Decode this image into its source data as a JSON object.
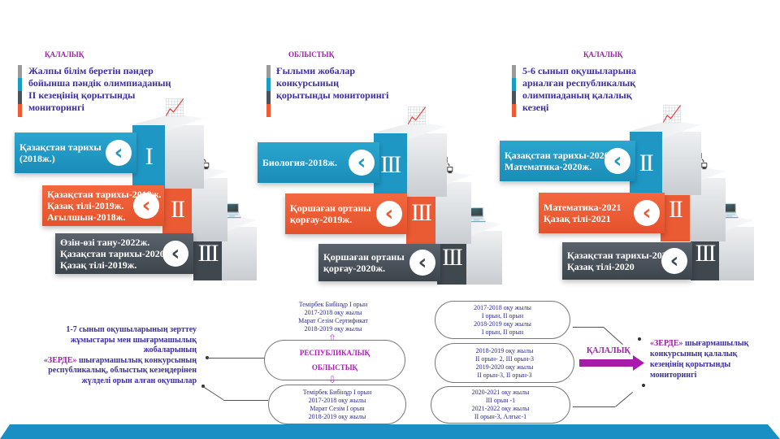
{
  "colors": {
    "blue": "#1a8cb8",
    "orange": "#e4522c",
    "dark": "#3c444c",
    "header": "#9b1fa8",
    "text": "#3a2ea0",
    "bar": "#1a8fc4"
  },
  "panels": [
    {
      "header": "ҚАЛАЛЫҚ",
      "title": [
        "Жалпы білім беретін пәндер",
        "бойынша пәндік олимпиаданың",
        "ІІ кезеңінің қорытынды",
        "мониторингі"
      ],
      "steps": [
        {
          "roman": "I",
          "lines": [
            "Қазақстан тарихы",
            "(2018ж.)"
          ]
        },
        {
          "roman": "II",
          "lines": [
            "Қазақстан тарихы-2019ж.",
            "Қазақ тілі-2019ж.",
            "Ағылшын-2018ж."
          ]
        },
        {
          "roman": "III",
          "lines": [
            "Өзін-өзі тану-2022ж.",
            "Қазақстан тарихы-2020ж.",
            "Қазақ тілі-2019ж."
          ]
        }
      ]
    },
    {
      "header": "ОБЛЫСТЫҚ",
      "title": [
        "Ғылыми жобалар",
        "конкурсының",
        "қорытынды мониторингі"
      ],
      "steps": [
        {
          "roman": "III",
          "lines": [
            "Биология-2018ж."
          ]
        },
        {
          "roman": "III",
          "lines": [
            "Қоршаған ортаны",
            "қорғау-2019ж."
          ]
        },
        {
          "roman": "III",
          "lines": [
            "Қоршаған ортаны",
            "қорғау-2020ж."
          ]
        }
      ]
    },
    {
      "header": "ҚАЛАЛЫҚ",
      "title": [
        "5-6 сынып оқушыларына",
        "арналған республикалық",
        "олимпиаданың қалалық",
        "кезеңі"
      ],
      "steps": [
        {
          "roman": "II",
          "lines": [
            "Қазақстан тарихы-2020ж.",
            "Математика-2020ж."
          ]
        },
        {
          "roman": "II",
          "lines": [
            "Математика-2021",
            "Қазақ тілі-2021"
          ]
        },
        {
          "roman": "III",
          "lines": [
            "Қазақстан тарихы-2021",
            "Қазақ тілі-2020"
          ]
        }
      ]
    }
  ],
  "zerde_left": {
    "lines": [
      "1-7 сынып оқушыларының зерттеу",
      "жұмыстары мен шығармашылық",
      "жобаларының"
    ],
    "highlight": "«ЗЕРДЕ»",
    "rest": [
      "шығармашылық конкурсының",
      "республикалық, облыстық кезеңдерінен",
      "жүлделі орын алған оқушылар"
    ]
  },
  "republic_top": [
    "Темірбек Бибінұр  І орын",
    "2017-2018 оқу жылы",
    "Марат Сезім  Сертификат",
    "2018-2019 оқу жылы"
  ],
  "levels": [
    "РЕСПУБЛИКАЛЫҚ",
    "ОБЛЫСТЫҚ"
  ],
  "oblys_bottom": [
    "Темірбек Бибінұр  І орын",
    "2017-2018 оқу жылы",
    "Марат Сезім І орын",
    "2018-2019 оқу жылы"
  ],
  "city_results": [
    [
      "2017-2018 оқу жылы",
      "І орын, ІІ орын",
      "2018-2019 оқу жылы",
      "І орын, ІІ орын"
    ],
    [
      "2018-2019 оқу жылы",
      "ІІ орын- 2, ІІІ орын-3",
      "2019-2020 оқу жылы",
      "ІІ орын-3, ІІ орын-3"
    ],
    [
      "2020-2021 оқу жылы",
      "ІІІ орын  -1",
      "2021-2022 оқу жылы",
      "ІІ орын-3, Алғыс-1"
    ]
  ],
  "city_label": "ҚАЛАЛЫҚ",
  "zerde_right": {
    "highlight": "«ЗЕРДЕ»",
    "first": "шығармашылық",
    "rest": [
      "конкурсының қалалық",
      "кезеңінің қорытынды",
      "мониторингі"
    ]
  }
}
